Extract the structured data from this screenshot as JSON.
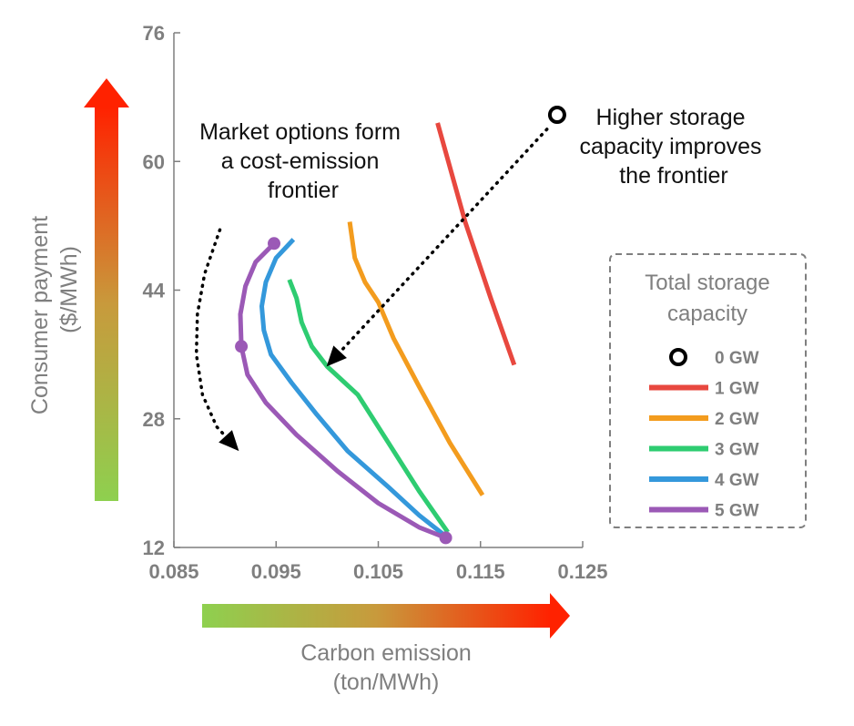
{
  "chart_data": {
    "type": "line",
    "xlabel": "Carbon emission",
    "xlabel_unit": "(ton/MWh)",
    "ylabel": "Consumer payment",
    "ylabel_unit": "($/MWh)",
    "xlim": [
      0.085,
      0.125
    ],
    "ylim": [
      12,
      76
    ],
    "xticks": [
      "0.085",
      "0.095",
      "0.105",
      "0.115",
      "0.125"
    ],
    "yticks": [
      "12",
      "28",
      "44",
      "60",
      "76"
    ],
    "xtick_values": [
      0.085,
      0.095,
      0.105,
      0.115,
      0.125
    ],
    "ytick_values": [
      12,
      28,
      44,
      60,
      76
    ],
    "grid": false,
    "legend": {
      "title_line1": "Total storage",
      "title_line2": "capacity",
      "placement": "right"
    },
    "series": [
      {
        "name": "0 GW",
        "color": "#000000",
        "marker": "open-circle",
        "points": [
          [
            0.1225,
            65.8
          ]
        ]
      },
      {
        "name": "1 GW",
        "color": "#e8483f",
        "points": [
          [
            0.1108,
            64.8
          ],
          [
            0.1135,
            52.5
          ],
          [
            0.116,
            43.0
          ],
          [
            0.1183,
            34.7
          ]
        ]
      },
      {
        "name": "2 GW",
        "color": "#f39c1e",
        "points": [
          [
            0.1022,
            52.5
          ],
          [
            0.1027,
            48.0
          ],
          [
            0.1037,
            45.0
          ],
          [
            0.105,
            42.5
          ],
          [
            0.1065,
            38.0
          ],
          [
            0.109,
            32.0
          ],
          [
            0.112,
            25.0
          ],
          [
            0.1152,
            18.5
          ]
        ]
      },
      {
        "name": "3 GW",
        "color": "#2ecc71",
        "points": [
          [
            0.0963,
            45.3
          ],
          [
            0.097,
            43.0
          ],
          [
            0.0975,
            40.0
          ],
          [
            0.0985,
            37.0
          ],
          [
            0.1,
            34.5
          ],
          [
            0.103,
            31.0
          ],
          [
            0.106,
            25.0
          ],
          [
            0.109,
            19.0
          ],
          [
            0.1118,
            13.9
          ]
        ]
      },
      {
        "name": "4 GW",
        "color": "#3498db",
        "points": [
          [
            0.0967,
            50.3
          ],
          [
            0.095,
            48.0
          ],
          [
            0.094,
            45.0
          ],
          [
            0.0936,
            42.0
          ],
          [
            0.0938,
            39.0
          ],
          [
            0.0945,
            36.0
          ],
          [
            0.0965,
            32.5
          ],
          [
            0.099,
            28.5
          ],
          [
            0.102,
            24.0
          ],
          [
            0.106,
            19.5
          ],
          [
            0.109,
            16.0
          ],
          [
            0.1113,
            13.7
          ]
        ]
      },
      {
        "name": "5 GW",
        "color": "#9b59b6",
        "marker_points": [
          [
            0.0948,
            49.8
          ],
          [
            0.0916,
            37.0
          ],
          [
            0.1116,
            13.2
          ]
        ],
        "points": [
          [
            0.0948,
            49.8
          ],
          [
            0.093,
            47.5
          ],
          [
            0.092,
            44.5
          ],
          [
            0.0915,
            41.0
          ],
          [
            0.0916,
            37.0
          ],
          [
            0.0922,
            33.5
          ],
          [
            0.094,
            30.0
          ],
          [
            0.097,
            26.0
          ],
          [
            0.101,
            21.5
          ],
          [
            0.105,
            17.5
          ],
          [
            0.109,
            14.5
          ],
          [
            0.1116,
            13.2
          ]
        ]
      }
    ],
    "annotations": [
      {
        "id": "frontier",
        "lines": [
          "Market options form",
          "a cost-emission",
          "frontier"
        ]
      },
      {
        "id": "improves",
        "lines": [
          "Higher storage",
          "capacity improves",
          "the frontier"
        ]
      }
    ],
    "arrows": [
      {
        "id": "frontier-arrow",
        "points": [
          [
            0.0895,
            51.5
          ],
          [
            0.088,
            46.0
          ],
          [
            0.0873,
            41.0
          ],
          [
            0.0872,
            36.0
          ],
          [
            0.0878,
            31.0
          ],
          [
            0.0892,
            27.0
          ],
          [
            0.091,
            24.5
          ]
        ]
      },
      {
        "id": "improves-arrow",
        "points": [
          [
            0.1215,
            64.0
          ],
          [
            0.1003,
            35.0
          ]
        ]
      }
    ],
    "colorbar_colors": {
      "low": "#8ed04f",
      "mid": "#c89a3c",
      "high": "#ff2200"
    }
  }
}
